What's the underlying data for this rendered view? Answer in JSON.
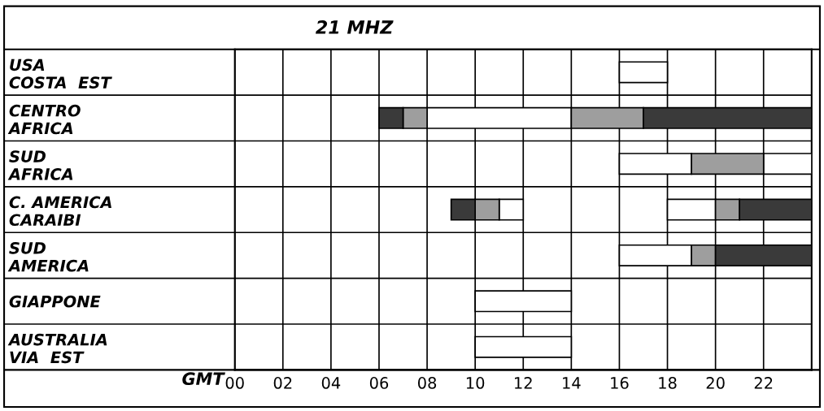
{
  "chart_data": {
    "type": "bar",
    "orientation": "horizontal",
    "title": "21 MHZ",
    "xlabel": "GMT",
    "categories": [
      "USA\nCOSTA  EST",
      "CENTRO\nAFRICA",
      "SUD\nAFRICA",
      "C. AMERICA\nCARAIBI",
      "SUD\nAMERICA",
      "GIAPPONE",
      "AUSTRALIA\nVIA  EST"
    ],
    "series": [
      {
        "color": "#ffffff",
        "base": [
          16,
          8,
          16,
          11,
          16,
          10,
          10
        ],
        "values": [
          2,
          6,
          3,
          1,
          3,
          4,
          4
        ]
      },
      {
        "color": "#ffffff",
        "base": [
          null,
          null,
          22,
          18,
          null,
          null,
          null
        ],
        "values": [
          null,
          null,
          2,
          2,
          null,
          null,
          null
        ]
      },
      {
        "color": "#9e9e9e",
        "base": [
          null,
          7,
          19,
          10,
          19,
          null,
          null
        ],
        "values": [
          null,
          1,
          3,
          1,
          1,
          null,
          null
        ]
      },
      {
        "color": "#9e9e9e",
        "base": [
          null,
          14,
          null,
          20,
          null,
          null,
          null
        ],
        "values": [
          null,
          3,
          null,
          1,
          null,
          null,
          null
        ]
      },
      {
        "color": "#3a3a3a",
        "base": [
          null,
          6,
          null,
          9,
          null,
          null,
          null
        ],
        "values": [
          null,
          1,
          null,
          1,
          null,
          null,
          null
        ]
      },
      {
        "color": "#3a3a3a",
        "base": [
          null,
          17,
          null,
          21,
          20,
          null,
          null
        ],
        "values": [
          null,
          7,
          null,
          3,
          4,
          null,
          null
        ]
      }
    ],
    "xlim": [
      0,
      24
    ],
    "xticks": [
      {
        "value": 0,
        "label": "00"
      },
      {
        "value": 2,
        "label": "02"
      },
      {
        "value": 4,
        "label": "04"
      },
      {
        "value": 6,
        "label": "06"
      },
      {
        "value": 8,
        "label": "08"
      },
      {
        "value": 10,
        "label": "10"
      },
      {
        "value": 12,
        "label": "12"
      },
      {
        "value": 14,
        "label": "14"
      },
      {
        "value": 16,
        "label": "16"
      },
      {
        "value": 18,
        "label": "18"
      },
      {
        "value": 20,
        "label": "20"
      },
      {
        "value": 22,
        "label": "22"
      }
    ],
    "grid": true
  }
}
